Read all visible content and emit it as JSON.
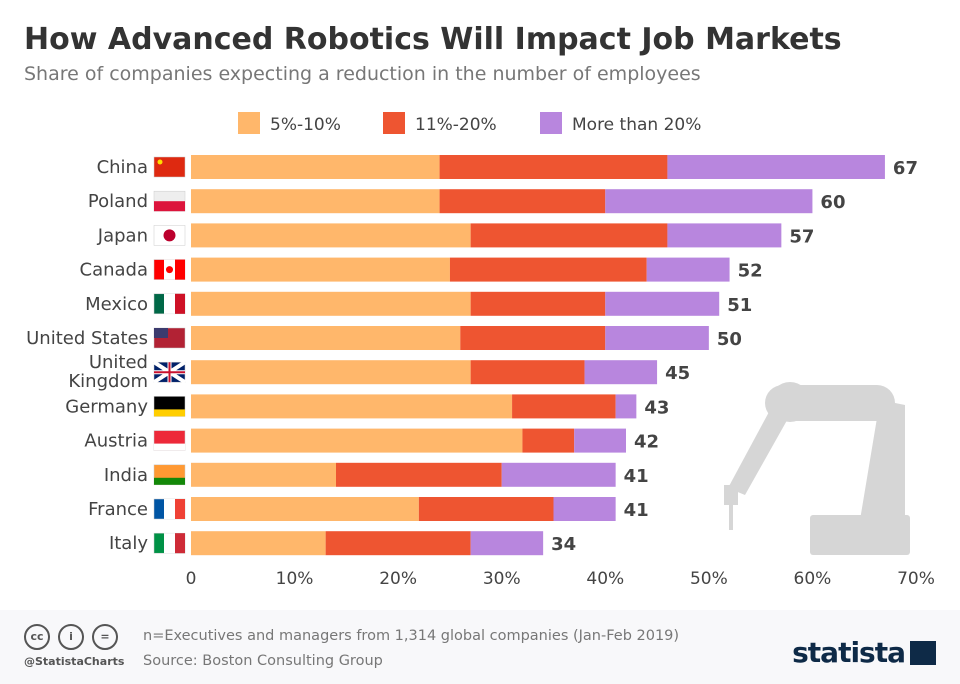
{
  "title": "How Advanced Robotics Will Impact Job Markets",
  "subtitle": "Share of companies expecting a reduction in the number of employees",
  "chart_data": {
    "type": "bar",
    "orientation": "horizontal",
    "stacked": true,
    "categories": [
      "China",
      "Poland",
      "Japan",
      "Canada",
      "Mexico",
      "United States",
      "United Kingdom",
      "Germany",
      "Austria",
      "India",
      "France",
      "Italy"
    ],
    "series": [
      {
        "name": "5%-10%",
        "color": "#ffb76b",
        "values": [
          24,
          24,
          27,
          25,
          27,
          26,
          27,
          31,
          32,
          14,
          22,
          13
        ]
      },
      {
        "name": "11%-20%",
        "color": "#ee5531",
        "values": [
          22,
          16,
          19,
          19,
          13,
          14,
          11,
          10,
          5,
          16,
          13,
          14
        ]
      },
      {
        "name": "More than 20%",
        "color": "#b886de",
        "values": [
          21,
          20,
          11,
          8,
          11,
          10,
          7,
          2,
          5,
          11,
          6,
          7
        ]
      }
    ],
    "totals": [
      67,
      60,
      57,
      52,
      51,
      50,
      45,
      43,
      42,
      41,
      41,
      34
    ],
    "xlim": [
      0,
      70
    ],
    "xticks": [
      "0",
      "10%",
      "20%",
      "30%",
      "40%",
      "50%",
      "60%",
      "70%"
    ],
    "legend": "top",
    "grid": false
  },
  "footer": {
    "note": "n=Executives and managers from 1,314 global companies (Jan-Feb 2019)",
    "source": "Source: Boston Consulting Group",
    "handle": "@StatistaCharts",
    "logo": "statista"
  }
}
